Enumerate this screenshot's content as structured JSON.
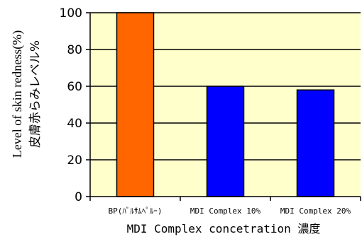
{
  "chart_data": {
    "type": "bar",
    "categories": [
      "BP(ﾊﾞﾙｻﾑﾍﾟﾙｰ)",
      "MDI Complex 10%",
      "MDI Complex 20%"
    ],
    "values": [
      100,
      60,
      58
    ],
    "bar_colors": [
      "#ff6600",
      "#0000ff",
      "#0000ff"
    ],
    "ylabel_en": "Level of skin redness(%)",
    "ylabel_ja": "皮膚赤らみレベル%",
    "xlabel": "MDI Complex concetration 濃度",
    "ylim": [
      0,
      100
    ],
    "yticks": [
      0,
      20,
      40,
      60,
      80,
      100
    ],
    "grid": true,
    "plot_background": "#ffffcc",
    "legend": "none"
  }
}
